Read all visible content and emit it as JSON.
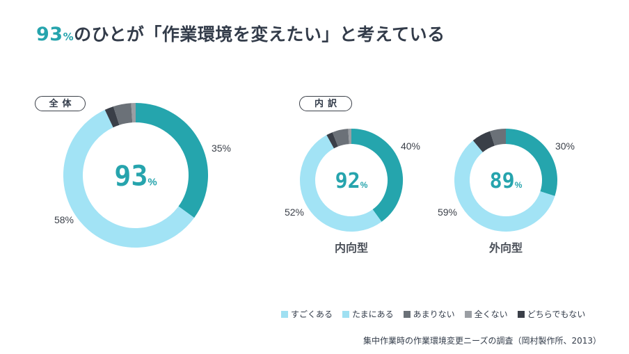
{
  "headline": {
    "number": "93",
    "percent": "%",
    "text": "のひとが「作業環境を変えたい」と考えている"
  },
  "tags": {
    "overall": "全体",
    "breakdown": "内訳"
  },
  "legend": [
    {
      "label": "すごくある",
      "color": "#9fe0f2"
    },
    {
      "label": "たまにある",
      "color": "#9fe0f2"
    },
    {
      "label": "あまりない",
      "color": "#6b7178"
    },
    {
      "label": "全くない",
      "color": "#9a9ea3"
    },
    {
      "label": "どちらでもない",
      "color": "#3a3f48"
    }
  ],
  "source": "集中作業時の作業環境変更ニーズの調査（岡村製作所、2013）",
  "chart_data": [
    {
      "type": "pie",
      "name": "全体",
      "center_value": "93",
      "center_unit": "%",
      "categories": [
        "すごくある",
        "たまにある",
        "どちらでもない",
        "あまりない",
        "全くない"
      ],
      "colors": [
        "#25a5ad",
        "#a2e3f5",
        "#3a3f48",
        "#6b7178",
        "#9a9ea3"
      ],
      "values": [
        35,
        58,
        2,
        4,
        1
      ],
      "labels": [
        "35%",
        "58%",
        "",
        "",
        ""
      ]
    },
    {
      "type": "pie",
      "name": "内向型",
      "center_value": "92",
      "center_unit": "%",
      "categories": [
        "すごくある",
        "たまにある",
        "どちらでもない",
        "あまりない",
        "全くない"
      ],
      "colors": [
        "#25a5ad",
        "#a2e3f5",
        "#3a3f48",
        "#6b7178",
        "#9a9ea3"
      ],
      "values": [
        40,
        52,
        2,
        5,
        1
      ],
      "labels": [
        "40%",
        "52%",
        "",
        "",
        ""
      ]
    },
    {
      "type": "pie",
      "name": "外向型",
      "center_value": "89",
      "center_unit": "%",
      "categories": [
        "すごくある",
        "たまにある",
        "どちらでもない",
        "あまりない",
        "全くない"
      ],
      "colors": [
        "#25a5ad",
        "#a2e3f5",
        "#3a3f48",
        "#6b7178",
        "#9a9ea3"
      ],
      "values": [
        30,
        59,
        6,
        5,
        0
      ],
      "labels": [
        "30%",
        "59%",
        "",
        "",
        ""
      ]
    }
  ]
}
